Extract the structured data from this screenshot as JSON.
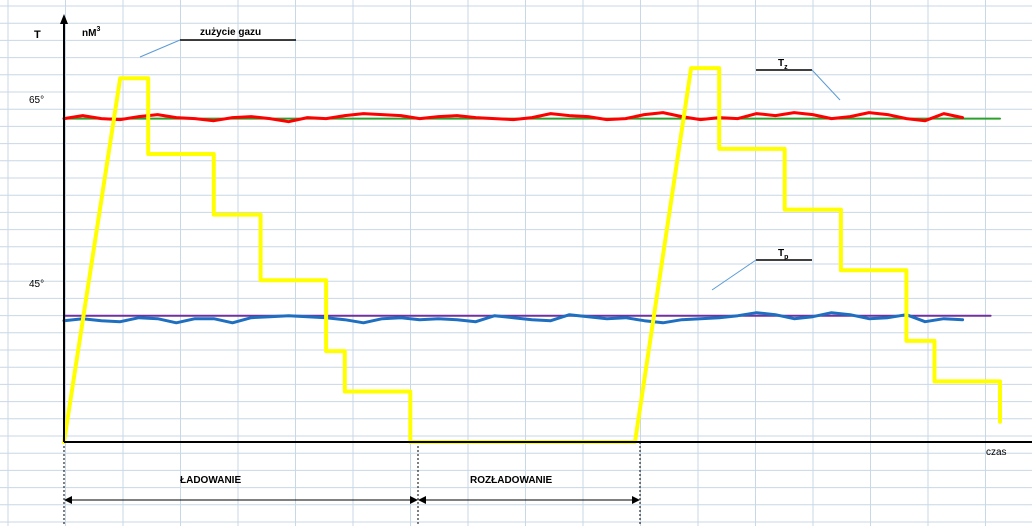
{
  "chart_data": {
    "type": "line",
    "y_axis_left_label": "T",
    "y_axis_right_label": "nM",
    "y_axis_right_label_sup": "3",
    "x_axis_label": "czas",
    "y_ticks": [
      "65°",
      "45°"
    ],
    "annotations": {
      "gas": "zużycie gazu",
      "tz_main": "T",
      "tz_sub": "z",
      "tp_main": "T",
      "tp_sub": "p"
    },
    "phases": [
      "ŁADOWANIE",
      "ROZŁADOWANIE"
    ],
    "grid": true,
    "colors": {
      "gas": "#ffff00",
      "tz": "#ff0000",
      "tz_ref": "#2ca02c",
      "tp": "#1f6fc0",
      "tp_ref": "#7030a0",
      "grid": "#c9d7e6"
    },
    "series": [
      {
        "key": "tz_ref",
        "x": [
          0,
          100
        ],
        "y": [
          65,
          65
        ]
      },
      {
        "key": "tp_ref",
        "x": [
          0,
          99
        ],
        "y": [
          45.5,
          45.5
        ]
      },
      {
        "key": "tz",
        "x": [
          0,
          2,
          4,
          6,
          8,
          10,
          12,
          14,
          16,
          18,
          20,
          22,
          24,
          26,
          28,
          30,
          32,
          34,
          36,
          38,
          40,
          42,
          44,
          46,
          48,
          50,
          52,
          54,
          56,
          58,
          60,
          62,
          64,
          66,
          68,
          70,
          72,
          74,
          76,
          78,
          80,
          82,
          84,
          86,
          88,
          90,
          92,
          94,
          96
        ],
        "y": [
          65,
          65.3,
          65,
          64.9,
          65.2,
          65.4,
          65.1,
          65.0,
          64.8,
          65.1,
          65.2,
          65.0,
          64.7,
          65.1,
          65.0,
          65.3,
          65.5,
          65.4,
          65.3,
          65.0,
          65.2,
          65.3,
          65.1,
          65.0,
          64.9,
          65.1,
          65.5,
          65.3,
          65.2,
          64.9,
          65.0,
          65.4,
          65.6,
          65.2,
          64.9,
          65.1,
          65.0,
          65.5,
          65.3,
          65.6,
          65.4,
          65.0,
          65.2,
          65.6,
          65.4,
          65.0,
          64.8,
          65.5,
          65.1
        ]
      },
      {
        "key": "tp",
        "x": [
          0,
          2,
          4,
          6,
          8,
          10,
          12,
          14,
          16,
          18,
          20,
          22,
          24,
          26,
          28,
          30,
          32,
          34,
          36,
          38,
          40,
          42,
          44,
          46,
          48,
          50,
          52,
          54,
          56,
          58,
          60,
          62,
          64,
          66,
          68,
          70,
          72,
          74,
          76,
          78,
          80,
          82,
          84,
          86,
          88,
          90,
          92,
          94,
          96
        ],
        "y": [
          45.0,
          45.2,
          45.0,
          44.9,
          45.3,
          45.2,
          44.8,
          45.2,
          45.2,
          44.8,
          45.3,
          45.4,
          45.5,
          45.4,
          45.3,
          45.1,
          44.8,
          45.2,
          45.3,
          45.1,
          45.2,
          45.1,
          44.9,
          45.5,
          45.3,
          45.1,
          45.0,
          45.6,
          45.4,
          45.2,
          45.3,
          45.0,
          44.8,
          45.1,
          45.2,
          45.3,
          45.5,
          45.8,
          45.6,
          45.2,
          45.4,
          45.8,
          45.6,
          45.2,
          45.3,
          45.6,
          44.9,
          45.2,
          45.1
        ]
      },
      {
        "key": "gas",
        "x": [
          0,
          6,
          9,
          9,
          16,
          16,
          21,
          21,
          28,
          28,
          30,
          30,
          37,
          37,
          61,
          67,
          70,
          70,
          77,
          77,
          83,
          83,
          90,
          90,
          93,
          93,
          100,
          100
        ],
        "y": [
          33,
          69,
          69,
          61.5,
          61.5,
          55.5,
          55.5,
          49,
          49,
          42,
          42,
          38,
          38,
          33,
          33,
          70,
          70,
          62,
          62,
          56,
          56,
          50,
          50,
          43,
          43,
          39,
          39,
          35
        ]
      }
    ],
    "xlim": [
      0,
      100
    ],
    "ylim": [
      33,
      71
    ]
  }
}
